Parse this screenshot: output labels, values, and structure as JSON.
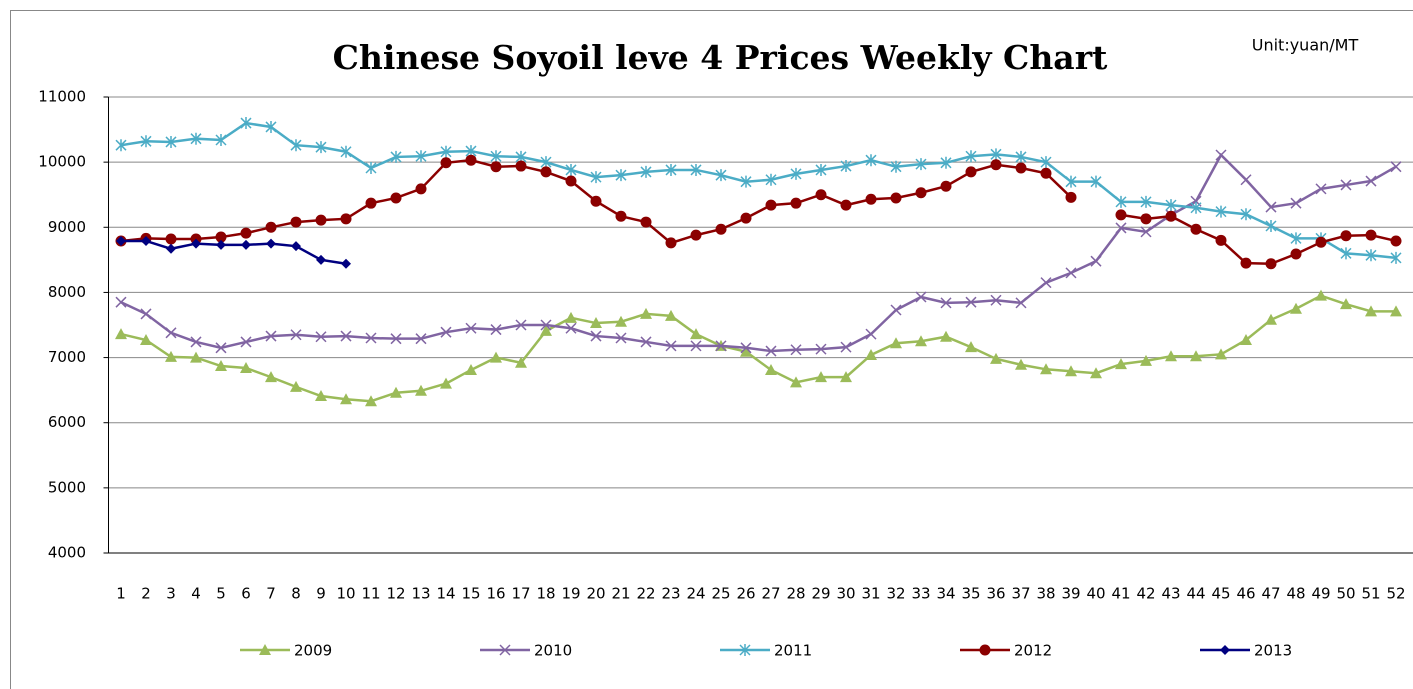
{
  "chart_data": {
    "type": "line",
    "title": "Chinese Soyoil leve 4 Prices Weekly Chart",
    "subtitle": "Unit:yuan/MT",
    "categories": [
      "1",
      "2",
      "3",
      "4",
      "5",
      "6",
      "7",
      "8",
      "9",
      "10",
      "11",
      "12",
      "13",
      "14",
      "15",
      "16",
      "17",
      "18",
      "19",
      "20",
      "21",
      "22",
      "23",
      "24",
      "25",
      "26",
      "27",
      "28",
      "29",
      "30",
      "31",
      "32",
      "33",
      "34",
      "35",
      "36",
      "37",
      "38",
      "39",
      "40",
      "41",
      "42",
      "43",
      "44",
      "45",
      "46",
      "47",
      "48",
      "49",
      "50",
      "51",
      "52"
    ],
    "ylim": [
      4000,
      11000
    ],
    "yticks": [
      4000,
      5000,
      6000,
      7000,
      8000,
      9000,
      10000,
      11000
    ],
    "grid": true,
    "legend": "bottom",
    "series": [
      {
        "name": "2009",
        "color": "#9bbb59",
        "marker": "triangle",
        "values": [
          7360,
          7270,
          7010,
          7000,
          6870,
          6840,
          6700,
          6550,
          6410,
          6360,
          6330,
          6460,
          6490,
          6600,
          6810,
          7000,
          6920,
          7410,
          7610,
          7530,
          7550,
          7670,
          7640,
          7360,
          7180,
          7090,
          6810,
          6620,
          6700,
          6700,
          7040,
          7220,
          7250,
          7320,
          7160,
          6980,
          6890,
          6820,
          6790,
          6760,
          6900,
          6950,
          7020,
          7020,
          7050,
          7270,
          7580,
          7750,
          7950,
          7820,
          7710,
          7710
        ]
      },
      {
        "name": "2010",
        "color": "#8064a2",
        "marker": "x",
        "values": [
          7850,
          7670,
          7380,
          7240,
          7150,
          7240,
          7330,
          7350,
          7320,
          7330,
          7300,
          7290,
          7290,
          7390,
          7450,
          7430,
          7500,
          7500,
          7450,
          7330,
          7300,
          7240,
          7180,
          7180,
          7180,
          7150,
          7100,
          7120,
          7130,
          7160,
          7360,
          7730,
          7930,
          7840,
          7850,
          7880,
          7840,
          8150,
          8300,
          8480,
          8990,
          8930,
          9190,
          9400,
          10110,
          9730,
          9310,
          9370,
          9590,
          9650,
          9710,
          9930
        ]
      },
      {
        "name": "2011",
        "color": "#4bacc6",
        "marker": "star",
        "values": [
          10260,
          10320,
          10310,
          10360,
          10340,
          10600,
          10540,
          10260,
          10230,
          10160,
          9910,
          10080,
          10090,
          10160,
          10170,
          10090,
          10080,
          10000,
          9880,
          9770,
          9800,
          9850,
          9880,
          9880,
          9800,
          9700,
          9730,
          9820,
          9880,
          9940,
          10030,
          9930,
          9970,
          9990,
          10090,
          10120,
          10080,
          10000,
          9700,
          9700,
          9390,
          9390,
          9340,
          9300,
          9240,
          9200,
          9020,
          8830,
          8830,
          8600,
          8570,
          8530
        ]
      },
      {
        "name": "2012",
        "color": "#8b0000",
        "marker": "circle",
        "values": [
          8790,
          8830,
          8820,
          8820,
          8850,
          8910,
          9000,
          9080,
          9110,
          9130,
          9370,
          9450,
          9590,
          9990,
          10030,
          9930,
          9940,
          9850,
          9710,
          9400,
          9170,
          9080,
          8760,
          8880,
          8970,
          9140,
          9340,
          9370,
          9500,
          9340,
          9430,
          9450,
          9530,
          9630,
          9850,
          9960,
          9910,
          9830,
          9460,
          null,
          9190,
          9130,
          9170,
          8970,
          8800,
          8450,
          8440,
          8590,
          8770,
          8870,
          8880,
          8790
        ]
      },
      {
        "name": "2013",
        "color": "#000080",
        "marker": "diamond",
        "values": [
          8790,
          8790,
          8670,
          8750,
          8730,
          8730,
          8750,
          8710,
          8500,
          8440,
          null,
          null,
          null,
          null,
          null,
          null,
          null,
          null,
          null,
          null,
          null,
          null,
          null,
          null,
          null,
          null,
          null,
          null,
          null,
          null,
          null,
          null,
          null,
          null,
          null,
          null,
          null,
          null,
          null,
          null,
          null,
          null,
          null,
          null,
          null,
          null,
          null,
          null,
          null,
          null,
          null,
          null
        ]
      }
    ]
  }
}
